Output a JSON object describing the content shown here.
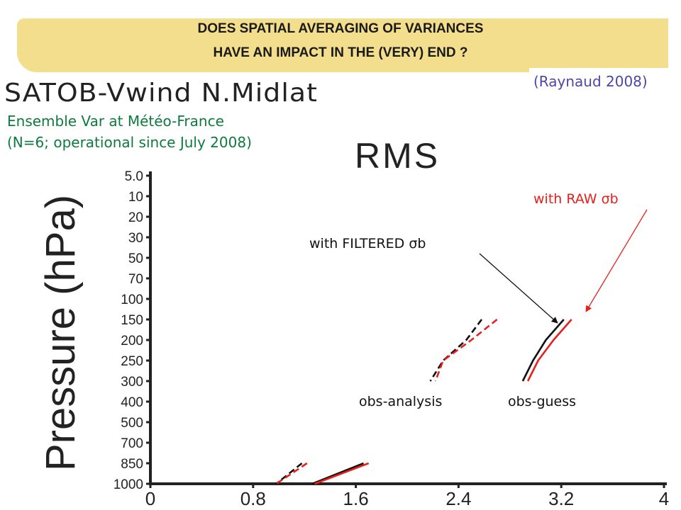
{
  "header": {
    "title_line1": "DOES SPATIAL AVERAGING OF VARIANCES",
    "title_line2": "HAVE AN IMPACT IN THE (VERY) END ?",
    "reference": "(Raynaud 2008)",
    "experiment": "SATOB-Vwind  N.Midlat",
    "note_line1": "Ensemble Var at Météo-France",
    "note_line2": "(N=6; operational since July 2008)"
  },
  "colors": {
    "filtered": "#111111",
    "raw": "#e8201c",
    "raw_label": "#e8201c",
    "note": "#0f7a3f",
    "reference": "#4b46a8",
    "banner": "#f2de8c"
  },
  "chart_data": {
    "type": "line",
    "title": "RMS",
    "xlabel": "",
    "ylabel": "Pressure (hPa)",
    "xlim": [
      0,
      4
    ],
    "x_ticks": [
      "0",
      "0.8",
      "1.6",
      "2.4",
      "3.2",
      "4"
    ],
    "x_tick_values": [
      0,
      0.8,
      1.6,
      2.4,
      3.2,
      4
    ],
    "y_ticks": [
      "5.0",
      "10",
      "20",
      "30",
      "50",
      "70",
      "100",
      "150",
      "200",
      "250",
      "300",
      "400",
      "500",
      "700",
      "850",
      "1000"
    ],
    "series": [
      {
        "name": "with FILTERED σb",
        "style": "dashed",
        "color": "#111111",
        "points": [
          [
            2.58,
            150
          ],
          [
            2.46,
            200
          ],
          [
            2.28,
            250
          ],
          [
            2.18,
            300
          ]
        ]
      },
      {
        "name": "with RAW σb",
        "style": "dashed",
        "color": "#e8201c",
        "points": [
          [
            2.7,
            150
          ],
          [
            2.5,
            200
          ],
          [
            2.28,
            250
          ],
          [
            2.22,
            300
          ]
        ]
      },
      {
        "name": "with FILTERED σb",
        "style": "solid",
        "color": "#111111",
        "points": [
          [
            3.22,
            150
          ],
          [
            3.08,
            200
          ],
          [
            2.98,
            250
          ],
          [
            2.9,
            300
          ]
        ]
      },
      {
        "name": "with RAW σb",
        "style": "solid",
        "color": "#e8201c",
        "points": [
          [
            3.28,
            150
          ],
          [
            3.14,
            200
          ],
          [
            3.02,
            250
          ],
          [
            2.94,
            300
          ]
        ]
      },
      {
        "name": "with FILTERED σb",
        "style": "dashed",
        "color": "#111111",
        "points": [
          [
            1.18,
            850
          ],
          [
            0.98,
            1000
          ]
        ]
      },
      {
        "name": "with RAW σb",
        "style": "dashed",
        "color": "#e8201c",
        "points": [
          [
            1.22,
            850
          ],
          [
            0.98,
            1000
          ]
        ]
      },
      {
        "name": "with FILTERED σb",
        "style": "solid",
        "color": "#111111",
        "points": [
          [
            1.66,
            850
          ],
          [
            1.26,
            1000
          ]
        ]
      },
      {
        "name": "with RAW σb",
        "style": "solid",
        "color": "#e8201c",
        "points": [
          [
            1.7,
            850
          ],
          [
            1.28,
            1000
          ]
        ]
      }
    ],
    "annotations": {
      "filtered_label": "with FILTERED σb",
      "raw_label": "with RAW σb",
      "obs_analysis": "obs-analysis",
      "obs_guess": "obs-guess"
    }
  }
}
